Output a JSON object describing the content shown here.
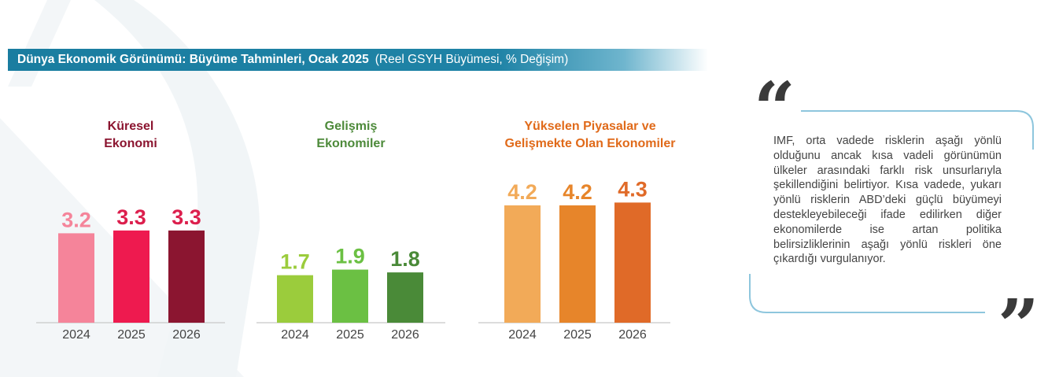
{
  "header": {
    "title": "Dünya Ekonomik Görünümü: Büyüme Tahminleri, Ocak 2025",
    "subtitle": "(Reel GSYH Büyümesi, % Değişim)"
  },
  "colors": {
    "header_bg": "#1a7da0",
    "quote_border": "#8ec6dd",
    "quote_mark": "#3a3a3a"
  },
  "chart_data": [
    {
      "type": "bar",
      "title": "Küresel\nEkonomi",
      "title_color": "#8b1530",
      "categories": [
        "2024",
        "2025",
        "2026"
      ],
      "values": [
        3.2,
        3.3,
        3.3
      ],
      "bar_colors": [
        "#f5849a",
        "#ee1a4f",
        "#8b1530"
      ],
      "label_colors": [
        "#f5849a",
        "#dc1f4d",
        "#dc1f4d"
      ],
      "ylim": [
        0,
        5
      ],
      "grid": false
    },
    {
      "type": "bar",
      "title": "Gelişmiş\nEkonomiler",
      "title_color": "#4d8a3a",
      "categories": [
        "2024",
        "2025",
        "2026"
      ],
      "values": [
        1.7,
        1.9,
        1.8
      ],
      "bar_colors": [
        "#9bcc3c",
        "#6bc043",
        "#4a8a38"
      ],
      "label_colors": [
        "#9bcc3c",
        "#6bc043",
        "#4a8a38"
      ],
      "ylim": [
        0,
        5
      ],
      "grid": false
    },
    {
      "type": "bar",
      "title": "Yükselen Piyasalar ve\nGelişmekte Olan Ekonomiler",
      "title_color": "#e06a1a",
      "categories": [
        "2024",
        "2025",
        "2026"
      ],
      "values": [
        4.2,
        4.2,
        4.3
      ],
      "bar_colors": [
        "#f2aa58",
        "#e7852a",
        "#e06a28"
      ],
      "label_colors": [
        "#f2aa58",
        "#e7852a",
        "#e06a28"
      ],
      "ylim": [
        0,
        5
      ],
      "grid": false
    }
  ],
  "quote": {
    "text": "IMF, orta vadede risklerin aşağı yönlü olduğunu ancak kısa vadeli görünümün ülkeler arasındaki farklı risk unsurlarıyla şekillendiğini belirtiyor. Kısa vadede, yukarı yönlü risklerin ABD’deki güçlü büyümeyi destekleyebileceği ifade edilirken diğer ekonomilerde ise artan politika belirsizliklerinin aşağı yönlü riskleri öne çıkardığı vurgulanıyor.",
    "open_mark": "“",
    "close_mark": "”"
  }
}
